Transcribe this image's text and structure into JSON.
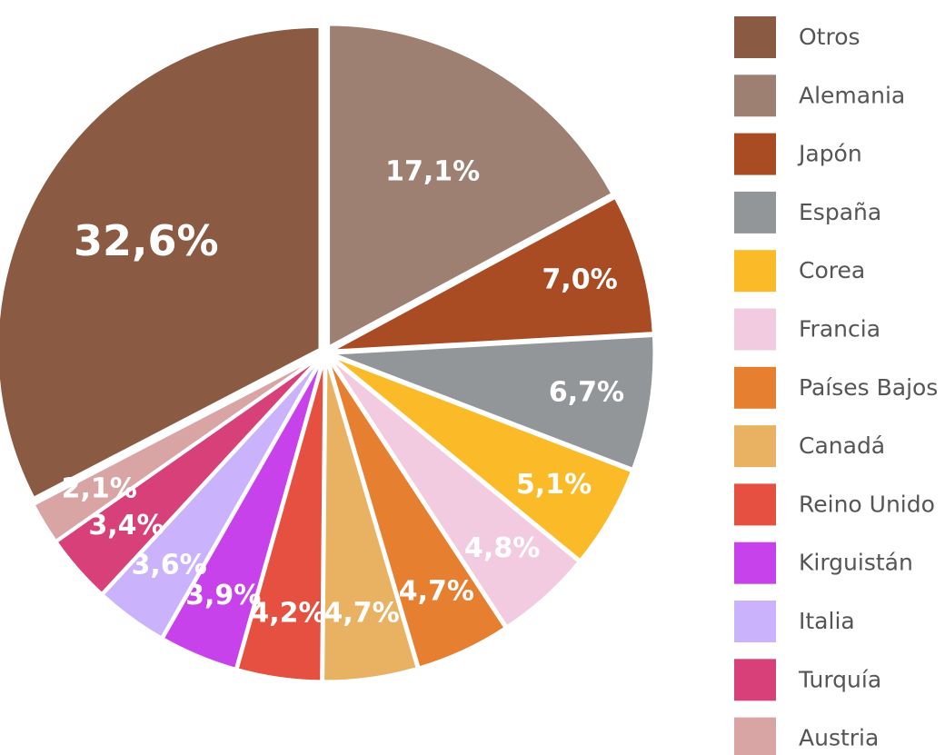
{
  "chart_data": {
    "type": "pie",
    "categories": [
      "Otros",
      "Alemania",
      "Japón",
      "España",
      "Corea",
      "Francia",
      "Países Bajos",
      "Canadá",
      "Reino Unido",
      "Kirguistán",
      "Italia",
      "Turquía",
      "Austria"
    ],
    "values": [
      32.6,
      17.1,
      7.0,
      6.7,
      5.1,
      4.8,
      4.7,
      4.7,
      4.2,
      3.9,
      3.6,
      3.4,
      2.1
    ],
    "value_labels": [
      "32,6%",
      "17,1%",
      "7,0%",
      "6,7%",
      "5,1%",
      "4,8%",
      "4,7%",
      "4,7%",
      "4,2%",
      "3,9%",
      "3,6%",
      "3,4%",
      "2,1%"
    ],
    "colors": [
      "#8b5a42",
      "#9e8072",
      "#a94c24",
      "#939698",
      "#fbbb29",
      "#f2cbe1",
      "#e77f31",
      "#e9b262",
      "#e55040",
      "#c742ea",
      "#cab2fc",
      "#d8407a",
      "#d8a4a4"
    ],
    "legend": "right"
  }
}
